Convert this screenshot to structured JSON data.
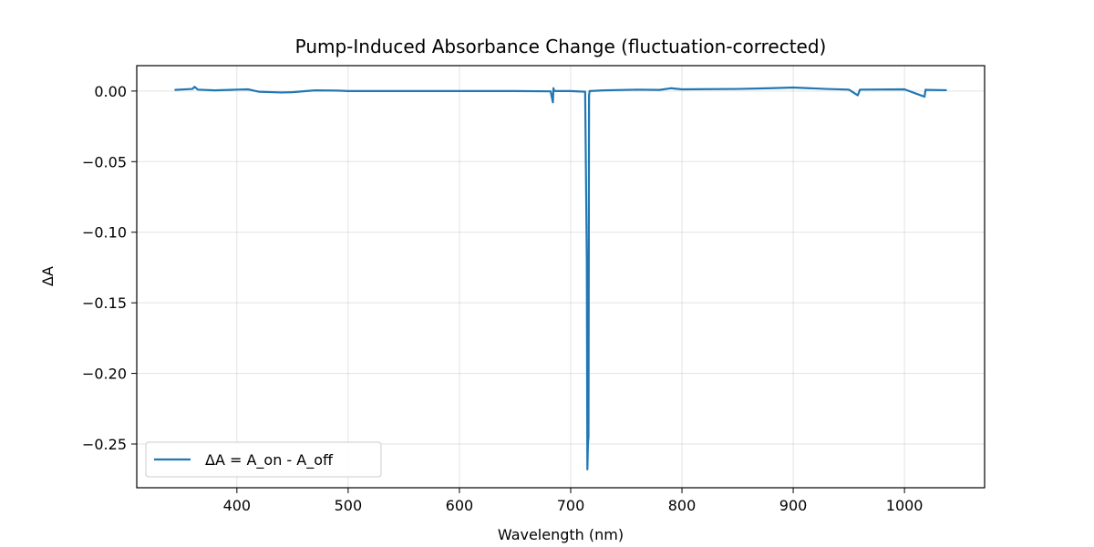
{
  "chart_data": {
    "type": "line",
    "title": "Pump-Induced Absorbance Change (fluctuation-corrected)",
    "xlabel": "Wavelength (nm)",
    "ylabel": "ΔA",
    "xlim": [
      310,
      1072
    ],
    "ylim": [
      -0.281,
      0.018
    ],
    "xticks": [
      400,
      500,
      600,
      700,
      800,
      900,
      1000
    ],
    "xtick_labels": [
      "400",
      "500",
      "600",
      "700",
      "800",
      "900",
      "1000"
    ],
    "yticks": [
      0.0,
      -0.05,
      -0.1,
      -0.15,
      -0.2,
      -0.25
    ],
    "ytick_labels": [
      "0.00",
      "−0.05",
      "−0.10",
      "−0.15",
      "−0.20",
      "−0.25"
    ],
    "grid": true,
    "legend_position": "lower-left",
    "colors": {
      "line": "#1f77b4",
      "grid": "#b0b0b0",
      "axes": "#000000"
    },
    "series": [
      {
        "name": "ΔA = A_on - A_off",
        "x": [
          344,
          360,
          362,
          365,
          380,
          400,
          410,
          420,
          440,
          450,
          470,
          490,
          500,
          550,
          600,
          650,
          682,
          684,
          684.5,
          685,
          686,
          700,
          713,
          714.5,
          715,
          715.5,
          716,
          716.5,
          717,
          730,
          760,
          780,
          790,
          800,
          850,
          880,
          900,
          930,
          950,
          958,
          960,
          1000,
          1018,
          1019,
          1020,
          1038
        ],
        "y": [
          0.0008,
          0.0015,
          0.003,
          0.001,
          0.0005,
          0.001,
          0.0012,
          -0.0005,
          -0.001,
          -0.0008,
          0.0005,
          0.0003,
          0.0,
          0.0,
          0.0,
          0.0,
          -0.0002,
          -0.008,
          0.002,
          0.0005,
          0.0,
          0.0,
          -0.0005,
          -0.12,
          -0.268,
          -0.25,
          -0.245,
          -0.003,
          0.0,
          0.0005,
          0.001,
          0.0008,
          0.002,
          0.0012,
          0.0015,
          0.002,
          0.0025,
          0.0015,
          0.001,
          -0.003,
          0.001,
          0.0012,
          -0.004,
          0.001,
          0.0008,
          0.0006
        ]
      }
    ]
  }
}
